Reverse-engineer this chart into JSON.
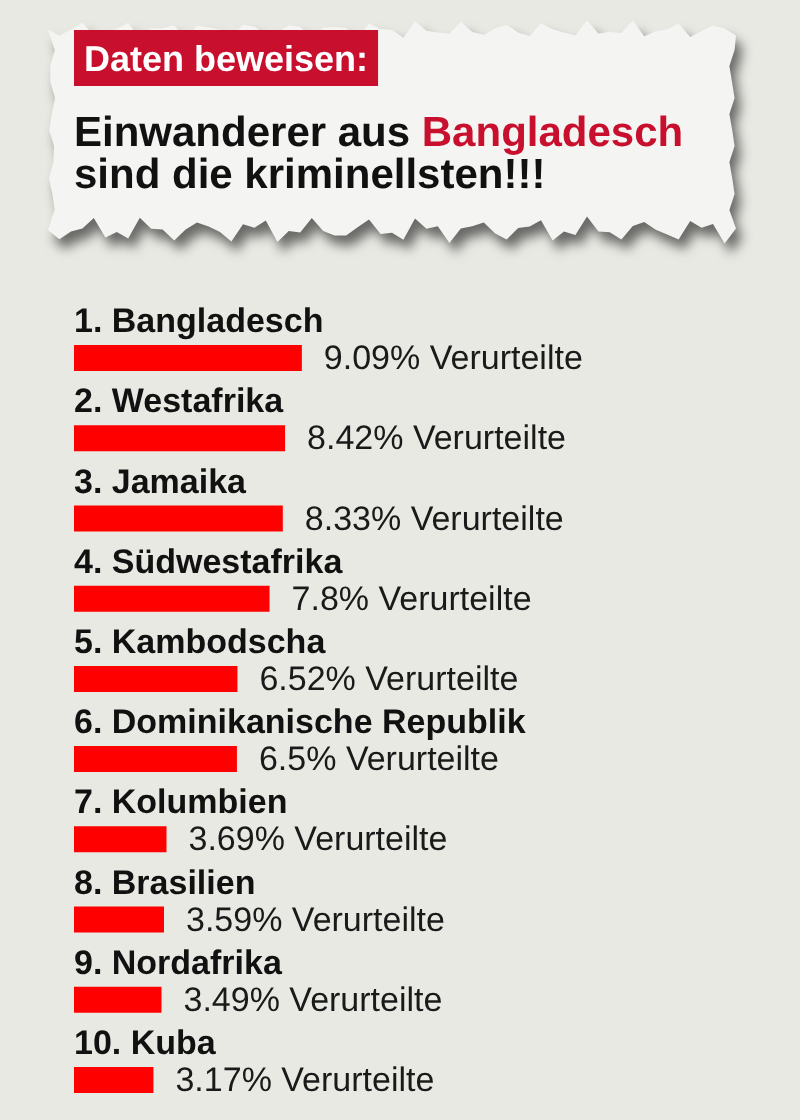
{
  "chart_data": {
    "type": "bar",
    "orientation": "horizontal",
    "subtitle": "Daten beweisen:",
    "title": "Einwanderer aus Bangladesch sind die kriminellsten!!!",
    "categories": [
      "1. Bangladesch",
      "2. Westafrika",
      "3. Jamaika",
      "4. Südwestafrika",
      "5. Kambodscha",
      "6. Dominikanische Republik",
      "7. Kolumbien",
      "8. Brasilien",
      "9. Nordafrika",
      "10. Kuba"
    ],
    "values": [
      9.09,
      8.42,
      8.33,
      7.8,
      6.52,
      6.5,
      3.69,
      3.59,
      3.49,
      3.17
    ],
    "value_labels": [
      "9.09% Verurteilte",
      "8.42% Verurteilte",
      "8.33% Verurteilte",
      "7.8% Verurteilte",
      "6.52% Verurteilte",
      "6.5% Verurteilte",
      "3.69% Verurteilte",
      "3.59% Verurteilte",
      "3.49% Verurteilte",
      "3.17% Verurteilte"
    ],
    "color": "#ff0000",
    "tick_labels": "y"
  }
}
